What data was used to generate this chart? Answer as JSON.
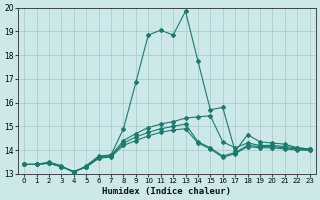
{
  "xlabel": "Humidex (Indice chaleur)",
  "bg_color": "#cce8e8",
  "grid_color": "#aacece",
  "line_color": "#1a7a6e",
  "xlim": [
    -0.5,
    23.5
  ],
  "ylim": [
    13,
    20
  ],
  "yticks": [
    13,
    14,
    15,
    16,
    17,
    18,
    19,
    20
  ],
  "xticks": [
    0,
    1,
    2,
    3,
    4,
    5,
    6,
    7,
    8,
    9,
    10,
    11,
    12,
    13,
    14,
    15,
    16,
    17,
    18,
    19,
    20,
    21,
    22,
    23
  ],
  "series": [
    [
      13.4,
      13.4,
      13.5,
      13.35,
      13.05,
      13.35,
      13.75,
      13.8,
      14.9,
      16.85,
      18.85,
      19.05,
      18.85,
      19.85,
      17.75,
      15.7,
      15.8,
      13.95,
      14.65,
      14.35,
      14.3,
      14.25,
      14.1,
      14.05
    ],
    [
      13.4,
      13.4,
      13.45,
      13.3,
      13.1,
      13.3,
      13.7,
      13.78,
      14.4,
      14.7,
      14.95,
      15.1,
      15.2,
      15.35,
      15.4,
      15.45,
      14.35,
      14.1,
      14.3,
      14.2,
      14.2,
      14.15,
      14.1,
      14.05
    ],
    [
      13.4,
      13.4,
      13.45,
      13.3,
      13.1,
      13.3,
      13.68,
      13.75,
      14.3,
      14.55,
      14.75,
      14.9,
      15.0,
      15.1,
      14.35,
      14.1,
      13.75,
      13.9,
      14.2,
      14.15,
      14.15,
      14.1,
      14.05,
      14.0
    ],
    [
      13.4,
      13.4,
      13.45,
      13.3,
      13.1,
      13.28,
      13.65,
      13.72,
      14.2,
      14.4,
      14.6,
      14.75,
      14.85,
      14.9,
      14.3,
      14.05,
      13.7,
      13.85,
      14.15,
      14.1,
      14.1,
      14.05,
      14.0,
      14.0
    ]
  ]
}
